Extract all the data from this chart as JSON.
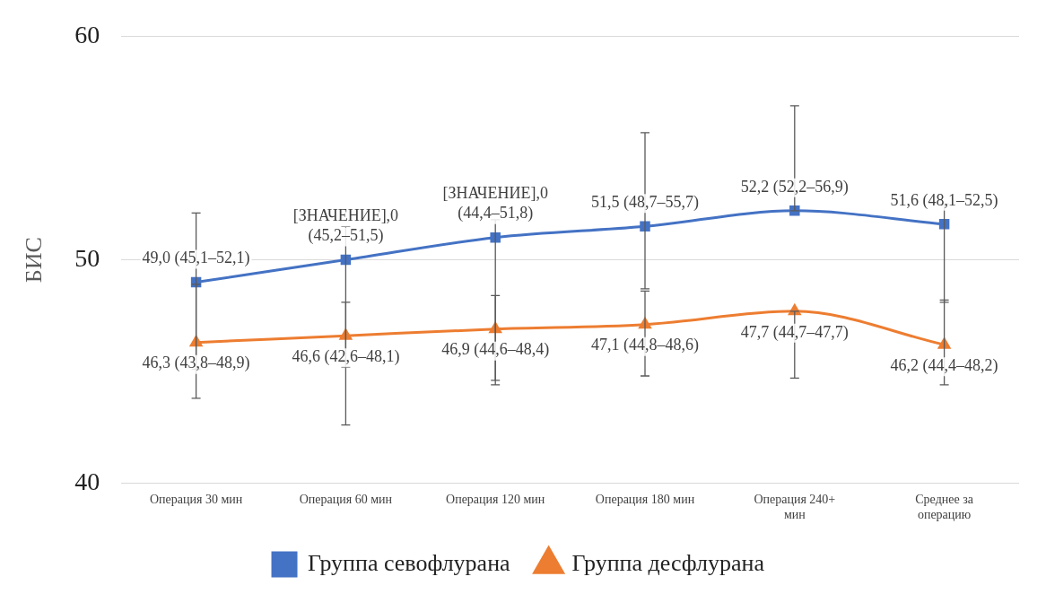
{
  "chart_data": {
    "type": "line",
    "ylabel": "БИС",
    "categories": [
      "Операция 30 мин",
      "Операция 60 мин",
      "Операция 120 мин",
      "Операция 180 мин",
      "Операция 240+ мин",
      "Среднее за операцию"
    ],
    "series": [
      {
        "name": "Группа севофлурана",
        "color": "#4472c4",
        "marker": "square",
        "values": [
          49.0,
          50.0,
          51.0,
          51.5,
          52.2,
          51.6
        ],
        "errors": [
          [
            45.1,
            52.1
          ],
          [
            45.2,
            51.5
          ],
          [
            44.4,
            51.8
          ],
          [
            48.7,
            55.7
          ],
          [
            52.2,
            56.9
          ],
          [
            48.1,
            52.5
          ]
        ],
        "value_labels": [
          "49,0 (45,1–52,1)",
          "[ЗНАЧЕНИЕ],0\n(45,2–51,5)",
          "[ЗНАЧЕНИЕ],0\n(44,4–51,8)",
          "51,5 (48,7–55,7)",
          "52,2 (52,2–56,9)",
          "51,6 (48,1–52,5)"
        ]
      },
      {
        "name": "Группа десфлурана",
        "color": "#ed7d31",
        "marker": "triangle",
        "values": [
          46.3,
          46.6,
          46.9,
          47.1,
          47.7,
          46.2
        ],
        "errors": [
          [
            43.8,
            48.9
          ],
          [
            42.6,
            48.1
          ],
          [
            44.6,
            48.4
          ],
          [
            44.8,
            48.6
          ],
          [
            44.7,
            47.7
          ],
          [
            44.4,
            48.2
          ]
        ],
        "value_labels": [
          "46,3 (43,8–48,9)",
          "46,6 (42,6–48,1)",
          "46,9 (44,6–48,4)",
          "47,1 (44,8–48,6)",
          "47,7 (44,7–47,7)",
          "46,2 (44,4–48,2)"
        ]
      }
    ],
    "ylim": [
      40,
      60
    ],
    "yticks": [
      40,
      50,
      60
    ],
    "grid": "y",
    "legend": "bottom"
  }
}
